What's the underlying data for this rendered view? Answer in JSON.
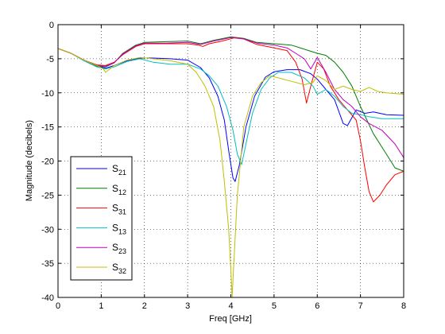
{
  "chart_data": {
    "type": "line",
    "xlabel": "Freq [GHz]",
    "ylabel": "Magnitude (decibels)",
    "xlim": [
      0,
      8
    ],
    "ylim": [
      -40,
      0
    ],
    "x_ticks": [
      "0",
      "1",
      "2",
      "3",
      "4",
      "5",
      "6",
      "7",
      "8"
    ],
    "y_ticks": [
      "0",
      "-5",
      "-10",
      "-15",
      "-20",
      "-25",
      "-30",
      "-35",
      "-40"
    ],
    "grid": true,
    "legend_position": "lower-left",
    "series": [
      {
        "name": "S21",
        "label_main": "S",
        "label_sub": "21",
        "color": "#0000ff",
        "points": [
          [
            0,
            -3.5
          ],
          [
            0.3,
            -4.2
          ],
          [
            0.6,
            -5.2
          ],
          [
            0.9,
            -6.1
          ],
          [
            1.1,
            -6.4
          ],
          [
            1.3,
            -6.0
          ],
          [
            1.6,
            -5.3
          ],
          [
            1.9,
            -4.9
          ],
          [
            2.2,
            -4.9
          ],
          [
            2.6,
            -5.0
          ],
          [
            3.0,
            -5.2
          ],
          [
            3.3,
            -6.3
          ],
          [
            3.5,
            -7.8
          ],
          [
            3.7,
            -10.5
          ],
          [
            3.85,
            -14
          ],
          [
            3.95,
            -18.5
          ],
          [
            4.05,
            -22.5
          ],
          [
            4.1,
            -23
          ],
          [
            4.2,
            -20.5
          ],
          [
            4.35,
            -15
          ],
          [
            4.55,
            -10.5
          ],
          [
            4.8,
            -7.7
          ],
          [
            5.0,
            -6.9
          ],
          [
            5.3,
            -6.6
          ],
          [
            5.6,
            -6.6
          ],
          [
            5.85,
            -7.2
          ],
          [
            6.0,
            -8.0
          ],
          [
            6.2,
            -9.5
          ],
          [
            6.4,
            -11
          ],
          [
            6.6,
            -14.5
          ],
          [
            6.7,
            -14.8
          ],
          [
            6.9,
            -12.5
          ],
          [
            7.1,
            -13.0
          ],
          [
            7.3,
            -12.8
          ],
          [
            7.6,
            -13.2
          ],
          [
            8.0,
            -13.3
          ]
        ]
      },
      {
        "name": "S12",
        "label_main": "S",
        "label_sub": "12",
        "color": "#007f00",
        "points": [
          [
            0,
            -3.5
          ],
          [
            0.3,
            -4.2
          ],
          [
            0.6,
            -5.2
          ],
          [
            0.9,
            -6.1
          ],
          [
            1.1,
            -6.2
          ],
          [
            1.3,
            -5.6
          ],
          [
            1.5,
            -4.2
          ],
          [
            1.8,
            -3.0
          ],
          [
            2.0,
            -2.6
          ],
          [
            2.5,
            -2.5
          ],
          [
            3.0,
            -2.4
          ],
          [
            3.3,
            -2.8
          ],
          [
            3.6,
            -2.3
          ],
          [
            4.0,
            -1.8
          ],
          [
            4.3,
            -2.0
          ],
          [
            4.6,
            -2.6
          ],
          [
            5.0,
            -2.8
          ],
          [
            5.4,
            -3.0
          ],
          [
            5.8,
            -3.8
          ],
          [
            6.0,
            -4.2
          ],
          [
            6.2,
            -4.5
          ],
          [
            6.4,
            -5.5
          ],
          [
            6.6,
            -7.0
          ],
          [
            6.8,
            -9.0
          ],
          [
            7.0,
            -12.0
          ],
          [
            7.3,
            -16.0
          ],
          [
            7.6,
            -19.0
          ],
          [
            7.8,
            -21.0
          ],
          [
            8.0,
            -21.5
          ]
        ]
      },
      {
        "name": "S31",
        "label_main": "S",
        "label_sub": "31",
        "color": "#ff0000",
        "points": [
          [
            0,
            -3.5
          ],
          [
            0.3,
            -4.2
          ],
          [
            0.6,
            -5.2
          ],
          [
            0.9,
            -5.9
          ],
          [
            1.1,
            -6.0
          ],
          [
            1.3,
            -5.5
          ],
          [
            1.5,
            -4.4
          ],
          [
            1.8,
            -3.2
          ],
          [
            2.0,
            -2.8
          ],
          [
            2.5,
            -2.8
          ],
          [
            3.0,
            -2.8
          ],
          [
            3.25,
            -3.0
          ],
          [
            3.35,
            -3.2
          ],
          [
            3.5,
            -2.8
          ],
          [
            3.8,
            -2.4
          ],
          [
            4.1,
            -1.9
          ],
          [
            4.3,
            -2.1
          ],
          [
            4.6,
            -2.9
          ],
          [
            5.0,
            -3.4
          ],
          [
            5.3,
            -3.8
          ],
          [
            5.5,
            -5.5
          ],
          [
            5.65,
            -8.0
          ],
          [
            5.75,
            -11.5
          ],
          [
            5.85,
            -9.0
          ],
          [
            6.0,
            -5.5
          ],
          [
            6.15,
            -6.5
          ],
          [
            6.3,
            -9.0
          ],
          [
            6.5,
            -11.0
          ],
          [
            6.7,
            -12.5
          ],
          [
            6.9,
            -14.0
          ],
          [
            7.0,
            -17.0
          ],
          [
            7.1,
            -21.0
          ],
          [
            7.2,
            -24.5
          ],
          [
            7.3,
            -26.0
          ],
          [
            7.45,
            -25.0
          ],
          [
            7.6,
            -23.5
          ],
          [
            7.8,
            -22.0
          ],
          [
            8.0,
            -21.5
          ]
        ]
      },
      {
        "name": "S13",
        "label_main": "S",
        "label_sub": "13",
        "color": "#00bfbf",
        "points": [
          [
            0,
            -3.5
          ],
          [
            0.3,
            -4.2
          ],
          [
            0.6,
            -5.3
          ],
          [
            0.9,
            -6.2
          ],
          [
            1.1,
            -6.5
          ],
          [
            1.3,
            -6.2
          ],
          [
            1.6,
            -5.4
          ],
          [
            1.9,
            -5.0
          ],
          [
            2.2,
            -5.5
          ],
          [
            2.6,
            -5.8
          ],
          [
            3.0,
            -5.8
          ],
          [
            3.3,
            -6.5
          ],
          [
            3.5,
            -7.5
          ],
          [
            3.7,
            -9.0
          ],
          [
            3.9,
            -12.0
          ],
          [
            4.05,
            -15.5
          ],
          [
            4.15,
            -19.0
          ],
          [
            4.25,
            -20.5
          ],
          [
            4.35,
            -17.5
          ],
          [
            4.5,
            -13.0
          ],
          [
            4.7,
            -9.5
          ],
          [
            4.9,
            -7.8
          ],
          [
            5.1,
            -7.0
          ],
          [
            5.4,
            -7.0
          ],
          [
            5.7,
            -7.8
          ],
          [
            5.9,
            -9.0
          ],
          [
            6.0,
            -10.2
          ],
          [
            6.2,
            -9.5
          ],
          [
            6.4,
            -10.5
          ],
          [
            6.6,
            -12.0
          ],
          [
            6.8,
            -13.0
          ],
          [
            7.0,
            -13.2
          ],
          [
            7.2,
            -13.5
          ],
          [
            7.5,
            -13.8
          ],
          [
            8.0,
            -13.8
          ]
        ]
      },
      {
        "name": "S23",
        "label_main": "S",
        "label_sub": "23",
        "color": "#bf00bf",
        "points": [
          [
            0,
            -3.5
          ],
          [
            0.3,
            -4.2
          ],
          [
            0.6,
            -5.2
          ],
          [
            0.9,
            -6.0
          ],
          [
            1.1,
            -6.1
          ],
          [
            1.3,
            -5.6
          ],
          [
            1.5,
            -4.3
          ],
          [
            1.8,
            -3.1
          ],
          [
            2.0,
            -2.7
          ],
          [
            2.5,
            -2.7
          ],
          [
            3.0,
            -2.6
          ],
          [
            3.3,
            -2.9
          ],
          [
            3.6,
            -2.4
          ],
          [
            4.0,
            -1.9
          ],
          [
            4.3,
            -2.1
          ],
          [
            4.6,
            -2.7
          ],
          [
            5.0,
            -3.0
          ],
          [
            5.3,
            -3.4
          ],
          [
            5.5,
            -4.2
          ],
          [
            5.7,
            -5.0
          ],
          [
            5.85,
            -6.5
          ],
          [
            6.0,
            -4.8
          ],
          [
            6.2,
            -7.0
          ],
          [
            6.4,
            -9.5
          ],
          [
            6.6,
            -11.0
          ],
          [
            6.8,
            -12.0
          ],
          [
            7.0,
            -13.5
          ],
          [
            7.2,
            -14.5
          ],
          [
            7.5,
            -15.5
          ],
          [
            7.8,
            -17.5
          ],
          [
            8.0,
            -19.5
          ]
        ]
      },
      {
        "name": "S32",
        "label_main": "S",
        "label_sub": "32",
        "color": "#bfbf00",
        "points": [
          [
            0,
            -3.5
          ],
          [
            0.3,
            -4.2
          ],
          [
            0.6,
            -5.2
          ],
          [
            0.9,
            -6.0
          ],
          [
            1.05,
            -6.5
          ],
          [
            1.1,
            -7.0
          ],
          [
            1.3,
            -6.0
          ],
          [
            1.6,
            -5.2
          ],
          [
            1.9,
            -4.8
          ],
          [
            2.2,
            -5.0
          ],
          [
            2.6,
            -5.3
          ],
          [
            3.0,
            -5.8
          ],
          [
            3.2,
            -7.0
          ],
          [
            3.4,
            -9.0
          ],
          [
            3.6,
            -12.0
          ],
          [
            3.75,
            -17.0
          ],
          [
            3.85,
            -23.0
          ],
          [
            3.95,
            -30.0
          ],
          [
            4.0,
            -36.0
          ],
          [
            4.03,
            -40.0
          ],
          [
            4.06,
            -36.0
          ],
          [
            4.15,
            -25.0
          ],
          [
            4.3,
            -15.0
          ],
          [
            4.5,
            -10.5
          ],
          [
            4.7,
            -8.5
          ],
          [
            4.9,
            -7.5
          ],
          [
            5.1,
            -7.8
          ],
          [
            5.4,
            -8.3
          ],
          [
            5.7,
            -8.8
          ],
          [
            5.9,
            -8.5
          ],
          [
            6.0,
            -7.5
          ],
          [
            6.2,
            -8.2
          ],
          [
            6.4,
            -9.5
          ],
          [
            6.6,
            -9.0
          ],
          [
            6.8,
            -9.5
          ],
          [
            7.0,
            -9.8
          ],
          [
            7.2,
            -9.2
          ],
          [
            7.4,
            -9.8
          ],
          [
            7.6,
            -10.0
          ],
          [
            8.0,
            -10.2
          ]
        ]
      }
    ]
  }
}
